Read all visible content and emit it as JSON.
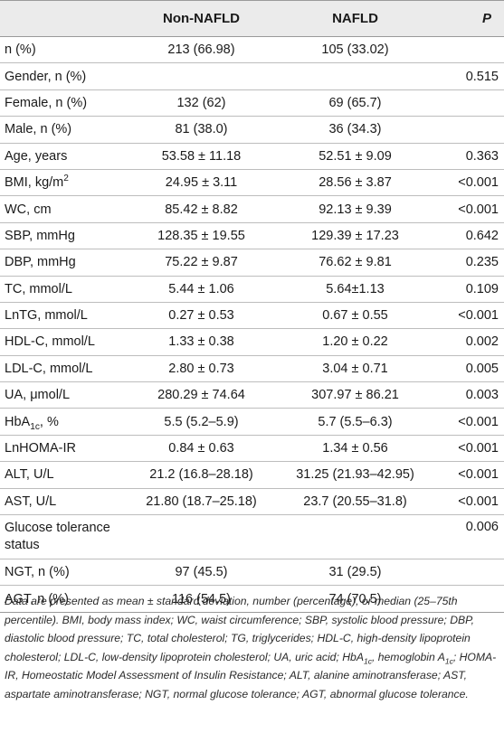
{
  "header": {
    "col_label": "",
    "col_a": "Non-NAFLD",
    "col_b": "NAFLD",
    "col_p": "P"
  },
  "rows": [
    {
      "label": "n (%)",
      "a": "213 (66.98)",
      "b": "105 (33.02)",
      "p": ""
    },
    {
      "label": "Gender, n (%)",
      "a": "",
      "b": "",
      "p": "0.515"
    },
    {
      "label": "Female, n (%)",
      "a": "132 (62)",
      "b": "69 (65.7)",
      "p": ""
    },
    {
      "label": "Male, n (%)",
      "a": "81 (38.0)",
      "b": "36 (34.3)",
      "p": ""
    },
    {
      "label": "Age, years",
      "a": "53.58 ± 11.18",
      "b": "52.51 ± 9.09",
      "p": "0.363"
    },
    {
      "label_main": "BMI, kg/m",
      "label_sup": "2",
      "a": "24.95 ± 3.11",
      "b": "28.56 ± 3.87",
      "p": "<0.001"
    },
    {
      "label": "WC, cm",
      "a": "85.42 ± 8.82",
      "b": "92.13 ± 9.39",
      "p": "<0.001"
    },
    {
      "label": "SBP, mmHg",
      "a": "128.35 ± 19.55",
      "b": "129.39 ± 17.23",
      "p": "0.642"
    },
    {
      "label": "DBP, mmHg",
      "a": "75.22 ± 9.87",
      "b": "76.62 ± 9.81",
      "p": "0.235"
    },
    {
      "label": "TC, mmol/L",
      "a": "5.44 ± 1.06",
      "b": "5.64±1.13",
      "p": "0.109"
    },
    {
      "label": "LnTG, mmol/L",
      "a": "0.27 ± 0.53",
      "b": "0.67 ± 0.55",
      "p": "<0.001"
    },
    {
      "label": "HDL-C, mmol/L",
      "a": "1.33 ± 0.38",
      "b": "1.20 ± 0.22",
      "p": "0.002"
    },
    {
      "label": "LDL-C, mmol/L",
      "a": "2.80 ± 0.73",
      "b": "3.04 ± 0.71",
      "p": "0.005"
    },
    {
      "label": "UA, μmol/L",
      "a": "280.29 ± 74.64",
      "b": "307.97 ± 86.21",
      "p": "0.003"
    },
    {
      "label_main": "HbA",
      "label_sub": "1c",
      "label_tail": ", %",
      "a": "5.5 (5.2–5.9)",
      "b": "5.7 (5.5–6.3)",
      "p": "<0.001"
    },
    {
      "label": "LnHOMA-IR",
      "a": "0.84 ± 0.63",
      "b": "1.34 ± 0.56",
      "p": "<0.001"
    },
    {
      "label": "ALT, U/L",
      "a": "21.2 (16.8–28.18)",
      "b": "31.25 (21.93–42.95)",
      "p": "<0.001"
    },
    {
      "label": "AST, U/L",
      "a": "21.80 (18.7–25.18)",
      "b": "23.7 (20.55–31.8)",
      "p": "<0.001"
    },
    {
      "label": "Glucose tolerance status",
      "a": "",
      "b": "",
      "p": "0.006"
    },
    {
      "label": "NGT, n (%)",
      "a": "97 (45.5)",
      "b": "31 (29.5)",
      "p": ""
    },
    {
      "label": "AGT, n (%)",
      "a": "116 (54.5)",
      "b": "74 (70.5)",
      "p": ""
    }
  ],
  "footnote": {
    "part1": "Data are presented as mean ± standard deviation, number (percentage), or median (25–75th percentile). BMI, body mass index; WC, waist circumference; SBP, systolic blood pressure; DBP, diastolic blood pressure; TC, total cholesterol; TG, triglycerides; HDL-C, high-density lipoprotein cholesterol; LDL-C, low-density lipoprotein cholesterol; UA, uric acid; HbA",
    "sub1": "1c",
    "part2": ", hemoglobin A",
    "sub2": "1c",
    "part3": "; HOMA-IR, Homeostatic Model Assessment of Insulin Resistance; ALT, alanine aminotransferase; AST, aspartate aminotransferase; NGT, normal glucose tolerance; AGT, abnormal glucose tolerance."
  }
}
